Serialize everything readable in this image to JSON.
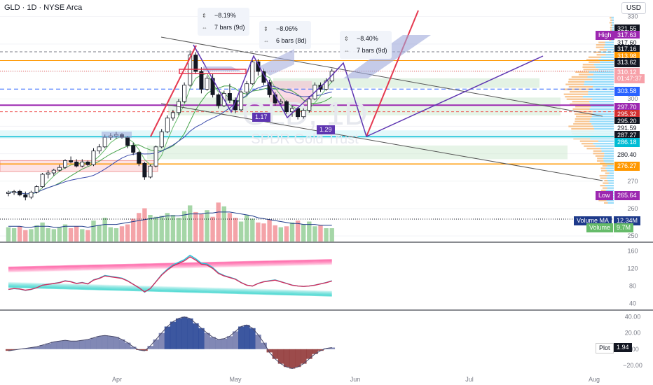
{
  "header": {
    "symbol": "GLD · 1D · NYSE Arca",
    "currency": "USD"
  },
  "watermark": {
    "title": "GLD, 1D",
    "subtitle": "SPDR Gold Trust"
  },
  "measures": [
    {
      "pct": "−8.19%",
      "bars": "7 bars (9d)"
    },
    {
      "pct": "−8.06%",
      "bars": "6 bars (8d)"
    },
    {
      "pct": "−8.40%",
      "bars": "7 bars (9d)"
    }
  ],
  "ratios": [
    "1.17",
    "1.29"
  ],
  "price_tags": [
    {
      "label": "",
      "value": "321.55",
      "bg": "#131722"
    },
    {
      "label": "High",
      "value": "317.63",
      "bg": "#9c27b0"
    },
    {
      "label": "",
      "value": "317.60",
      "bg": "#ffffff"
    },
    {
      "label": "",
      "value": "317.16",
      "bg": "#131722"
    },
    {
      "label": "",
      "value": "313.98",
      "bg": "#ff9800"
    },
    {
      "label": "",
      "value": "313.62",
      "bg": "#131722"
    },
    {
      "label": "",
      "value": "310.12",
      "bg": "#f7a1a9"
    },
    {
      "label": "",
      "value": "01:47:37",
      "bg": "#f7a1a9"
    },
    {
      "label": "",
      "value": "303.58",
      "bg": "#2962ff"
    },
    {
      "label": "",
      "value": "297.70",
      "bg": "#9c27b0"
    },
    {
      "label": "",
      "value": "295.32",
      "bg": "#d32f2f"
    },
    {
      "label": "",
      "value": "295.20",
      "bg": "#131722"
    },
    {
      "label": "",
      "value": "291.59",
      "bg": "#ffffff"
    },
    {
      "label": "",
      "value": "287.27",
      "bg": "#131722"
    },
    {
      "label": "",
      "value": "286.18",
      "bg": "#00bcd4"
    },
    {
      "label": "",
      "value": "280.40",
      "bg": "#ffffff"
    },
    {
      "label": "",
      "value": "276.27",
      "bg": "#ff9800"
    },
    {
      "label": "Low",
      "value": "265.64",
      "bg": "#9c27b0"
    }
  ],
  "volume_tags": [
    {
      "label": "Volume MA",
      "value": "12.34M",
      "bg": "#1e3a8a"
    },
    {
      "label": "Volume",
      "value": "9.7M",
      "bg": "#66bb6a"
    }
  ],
  "plot_tag": {
    "label": "Plot",
    "value": "1.94"
  },
  "chart_data": {
    "type": "candlestick",
    "x_ticks": [
      "Apr",
      "May",
      "Jun",
      "Jul",
      "Aug"
    ],
    "price_axis": {
      "ticks": [
        330,
        320,
        310,
        300,
        290,
        280,
        270,
        260,
        250
      ],
      "ylim": [
        248,
        334
      ]
    },
    "candles": [
      {
        "o": 265.5,
        "h": 266.5,
        "l": 264.5,
        "c": 266.0
      },
      {
        "o": 265.8,
        "h": 266.8,
        "l": 265.0,
        "c": 266.2
      },
      {
        "o": 266.3,
        "h": 266.9,
        "l": 264.5,
        "c": 265.0
      },
      {
        "o": 265.0,
        "h": 266.2,
        "l": 263.0,
        "c": 264.2
      },
      {
        "o": 264.2,
        "h": 266.5,
        "l": 263.5,
        "c": 266.0
      },
      {
        "o": 266.0,
        "h": 268.5,
        "l": 265.5,
        "c": 268.0
      },
      {
        "o": 268.0,
        "h": 273.0,
        "l": 267.5,
        "c": 272.5
      },
      {
        "o": 272.5,
        "h": 274.0,
        "l": 271.0,
        "c": 273.0
      },
      {
        "o": 273.0,
        "h": 274.5,
        "l": 272.0,
        "c": 274.0
      },
      {
        "o": 274.0,
        "h": 276.0,
        "l": 273.5,
        "c": 275.0
      },
      {
        "o": 275.0,
        "h": 278.0,
        "l": 274.5,
        "c": 277.5
      },
      {
        "o": 277.5,
        "h": 279.0,
        "l": 276.5,
        "c": 277.0
      },
      {
        "o": 277.0,
        "h": 278.0,
        "l": 275.0,
        "c": 275.5
      },
      {
        "o": 275.5,
        "h": 278.0,
        "l": 275.0,
        "c": 277.0
      },
      {
        "o": 277.0,
        "h": 277.5,
        "l": 275.5,
        "c": 276.0
      },
      {
        "o": 276.0,
        "h": 282.0,
        "l": 275.5,
        "c": 281.0
      },
      {
        "o": 281.0,
        "h": 283.5,
        "l": 280.0,
        "c": 282.5
      },
      {
        "o": 282.5,
        "h": 287.0,
        "l": 282.0,
        "c": 286.0
      },
      {
        "o": 286.0,
        "h": 287.5,
        "l": 285.0,
        "c": 286.5
      },
      {
        "o": 286.5,
        "h": 288.0,
        "l": 285.5,
        "c": 287.0
      },
      {
        "o": 287.0,
        "h": 287.5,
        "l": 285.5,
        "c": 286.0
      },
      {
        "o": 286.0,
        "h": 286.5,
        "l": 282.0,
        "c": 283.0
      },
      {
        "o": 283.0,
        "h": 284.0,
        "l": 279.5,
        "c": 280.5
      },
      {
        "o": 280.5,
        "h": 281.0,
        "l": 275.5,
        "c": 276.5
      },
      {
        "o": 276.5,
        "h": 277.0,
        "l": 270.5,
        "c": 271.5
      },
      {
        "o": 271.5,
        "h": 276.0,
        "l": 271.0,
        "c": 275.5
      },
      {
        "o": 275.5,
        "h": 283.0,
        "l": 275.0,
        "c": 282.5
      },
      {
        "o": 282.5,
        "h": 289.0,
        "l": 282.0,
        "c": 288.0
      },
      {
        "o": 288.0,
        "h": 294.0,
        "l": 287.5,
        "c": 293.0
      },
      {
        "o": 293.0,
        "h": 296.0,
        "l": 292.0,
        "c": 295.0
      },
      {
        "o": 295.0,
        "h": 300.0,
        "l": 294.0,
        "c": 299.0
      },
      {
        "o": 299.0,
        "h": 306.0,
        "l": 298.5,
        "c": 305.0
      },
      {
        "o": 305.0,
        "h": 317.6,
        "l": 304.5,
        "c": 316.0
      },
      {
        "o": 316.0,
        "h": 317.0,
        "l": 309.0,
        "c": 310.0
      },
      {
        "o": 310.0,
        "h": 311.5,
        "l": 302.0,
        "c": 303.5
      },
      {
        "o": 303.5,
        "h": 308.5,
        "l": 303.0,
        "c": 307.5
      },
      {
        "o": 307.5,
        "h": 309.0,
        "l": 300.5,
        "c": 301.5
      },
      {
        "o": 301.5,
        "h": 302.0,
        "l": 296.5,
        "c": 297.5
      },
      {
        "o": 297.5,
        "h": 303.0,
        "l": 297.0,
        "c": 302.0
      },
      {
        "o": 302.0,
        "h": 305.5,
        "l": 298.5,
        "c": 299.5
      },
      {
        "o": 299.5,
        "h": 300.5,
        "l": 294.8,
        "c": 296.0
      },
      {
        "o": 296.0,
        "h": 303.0,
        "l": 295.5,
        "c": 302.5
      },
      {
        "o": 302.5,
        "h": 306.5,
        "l": 301.5,
        "c": 305.5
      },
      {
        "o": 305.5,
        "h": 314.0,
        "l": 305.0,
        "c": 313.5
      },
      {
        "o": 313.5,
        "h": 314.5,
        "l": 308.5,
        "c": 310.0
      },
      {
        "o": 310.0,
        "h": 311.0,
        "l": 305.0,
        "c": 306.0
      },
      {
        "o": 306.0,
        "h": 307.0,
        "l": 300.5,
        "c": 301.5
      },
      {
        "o": 301.5,
        "h": 302.5,
        "l": 297.5,
        "c": 298.5
      },
      {
        "o": 298.5,
        "h": 300.0,
        "l": 297.5,
        "c": 299.0
      },
      {
        "o": 299.0,
        "h": 299.5,
        "l": 294.5,
        "c": 295.3
      },
      {
        "o": 295.3,
        "h": 297.5,
        "l": 293.5,
        "c": 296.5
      },
      {
        "o": 296.5,
        "h": 297.0,
        "l": 292.5,
        "c": 293.5
      },
      {
        "o": 293.5,
        "h": 296.5,
        "l": 292.8,
        "c": 295.8
      },
      {
        "o": 295.8,
        "h": 301.0,
        "l": 295.0,
        "c": 300.0
      },
      {
        "o": 300.0,
        "h": 306.0,
        "l": 299.5,
        "c": 305.0
      },
      {
        "o": 305.0,
        "h": 306.0,
        "l": 302.5,
        "c": 303.5
      },
      {
        "o": 303.5,
        "h": 307.5,
        "l": 303.0,
        "c": 306.5
      },
      {
        "o": 306.5,
        "h": 311.0,
        "l": 306.0,
        "c": 310.1
      }
    ],
    "volume_axis": {
      "ylim": [
        0,
        70
      ]
    },
    "volume": [
      15,
      14,
      16,
      12,
      13,
      17,
      20,
      14,
      13,
      15,
      18,
      14,
      16,
      13,
      12,
      22,
      17,
      25,
      15,
      14,
      16,
      18,
      24,
      30,
      35,
      28,
      26,
      27,
      30,
      28,
      25,
      32,
      38,
      31,
      29,
      33,
      26,
      41,
      37,
      30,
      25,
      21,
      28,
      24,
      20,
      19,
      23,
      17,
      15,
      16,
      20,
      22,
      18,
      21,
      16,
      17,
      14,
      14
    ],
    "volume_ma": [
      16,
      16,
      16,
      15,
      15,
      16,
      16,
      16,
      15,
      15,
      16,
      16,
      16,
      16,
      15,
      16,
      17,
      18,
      18,
      18,
      19,
      20,
      21,
      22,
      23,
      24,
      25,
      26,
      27,
      27,
      27,
      28,
      29,
      29,
      29,
      30,
      30,
      31,
      31,
      31,
      30,
      29,
      28,
      27,
      25,
      24,
      23,
      22,
      21,
      20,
      19,
      19,
      18,
      18,
      18,
      17,
      17,
      17
    ],
    "oscillator_axis": {
      "ticks": [
        160,
        120,
        80,
        40
      ],
      "ylim": [
        30,
        170
      ]
    },
    "oscillator_line": [
      72,
      74,
      73,
      70,
      72,
      76,
      82,
      84,
      86,
      88,
      92,
      90,
      86,
      88,
      85,
      94,
      98,
      104,
      102,
      100,
      98,
      92,
      84,
      76,
      66,
      74,
      90,
      106,
      118,
      128,
      134,
      140,
      150,
      142,
      132,
      130,
      122,
      110,
      104,
      100,
      96,
      88,
      82,
      80,
      86,
      90,
      92,
      94,
      90,
      86,
      82,
      80,
      79,
      80,
      82,
      85,
      88,
      92
    ],
    "momentum_axis": {
      "ticks": [
        40,
        20,
        0,
        -20
      ],
      "ylim": [
        -27,
        44
      ]
    },
    "momentum": [
      -2,
      -1,
      0,
      1,
      2,
      3,
      5,
      7,
      9,
      10,
      11,
      10,
      10,
      11,
      12,
      14,
      16,
      17,
      16,
      15,
      12,
      8,
      3,
      -1,
      -2,
      4,
      12,
      20,
      28,
      34,
      38,
      40,
      38,
      32,
      26,
      20,
      15,
      12,
      13,
      16,
      22,
      28,
      30,
      26,
      18,
      8,
      -4,
      -12,
      -18,
      -22,
      -24,
      -22,
      -18,
      -12,
      -6,
      -2,
      1,
      2
    ]
  }
}
